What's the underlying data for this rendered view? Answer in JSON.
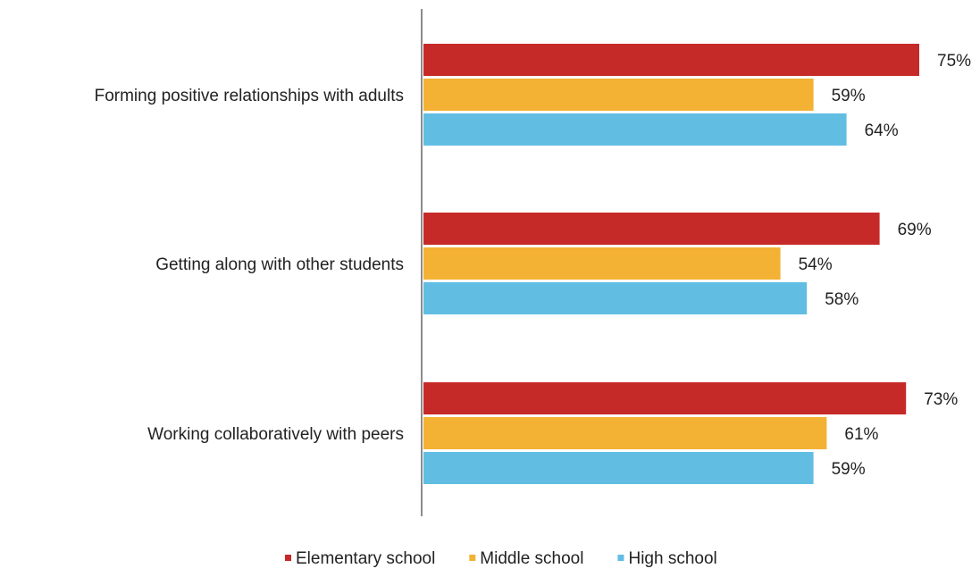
{
  "chart_data": {
    "type": "bar",
    "orientation": "horizontal",
    "categories": [
      "Forming positive relationships with adults",
      "Getting along with other students",
      "Working collaboratively with peers"
    ],
    "series": [
      {
        "name": "Elementary school",
        "color": "#c62a28",
        "values": [
          75,
          69,
          73
        ],
        "labels": [
          "75%",
          "69%",
          "73%"
        ]
      },
      {
        "name": "Middle school",
        "color": "#f3b234",
        "values": [
          59,
          54,
          61
        ],
        "labels": [
          "59%",
          "54%",
          "61%"
        ]
      },
      {
        "name": "High school",
        "color": "#62bde3",
        "values": [
          64,
          58,
          59
        ],
        "labels": [
          "64%",
          "58%",
          "59%"
        ]
      }
    ],
    "xlim": [
      0,
      80
    ],
    "value_unit": "%",
    "grid": false,
    "legend_position": "bottom"
  }
}
